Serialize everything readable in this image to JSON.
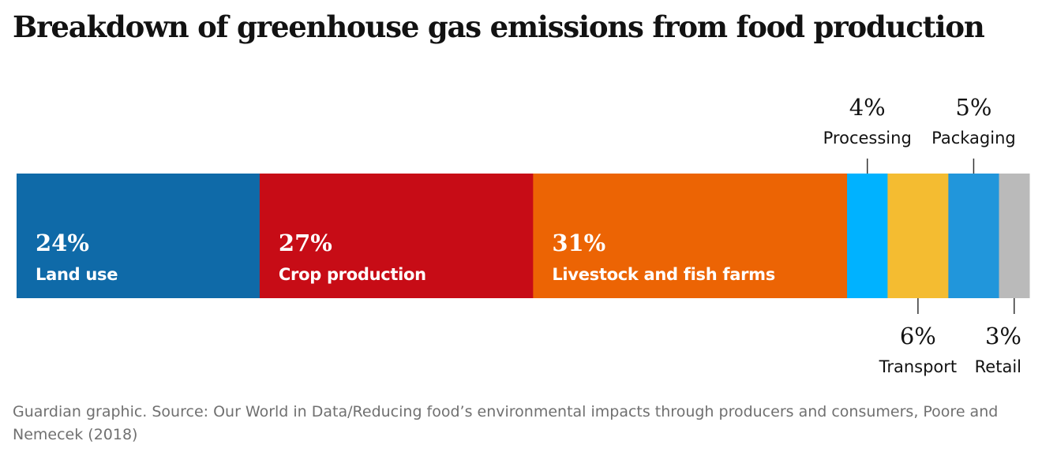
{
  "title": "Breakdown of greenhouse gas emissions from food production",
  "source": "Guardian graphic. Source: Our World in Data/Reducing food’s environmental impacts through producers and consumers, Poore and Nemecek (2018)",
  "chart_data": {
    "type": "bar",
    "stacked": true,
    "unit": "%",
    "categories": [
      "Land use",
      "Crop production",
      "Livestock and fish farms",
      "Processing",
      "Transport",
      "Packaging",
      "Retail"
    ],
    "values": [
      24,
      27,
      31,
      4,
      6,
      5,
      3
    ],
    "labels": [
      "24%",
      "27%",
      "31%",
      "4%",
      "6%",
      "5%",
      "3%"
    ],
    "colors": [
      "#0f6aa8",
      "#c70c16",
      "#ec6404",
      "#00b2ff",
      "#f4bc31",
      "#2196db",
      "#bababa"
    ],
    "label_position": [
      "inside",
      "inside",
      "inside",
      "above",
      "below",
      "above",
      "below"
    ]
  }
}
